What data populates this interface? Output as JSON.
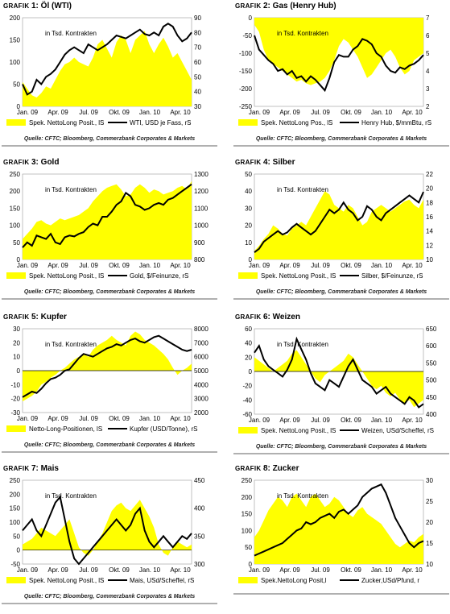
{
  "source_text": "Quelle: CFTC; Bloomberg, Commerzbank Corporates & Markets",
  "fill_color": "#ffff00",
  "line_color": "#000000",
  "chart_data": [
    {
      "type": "area",
      "label_word": "Grafik",
      "label_num": "1:",
      "title": "Öl (WTI)",
      "annotation": "in Tsd. Kontrakten",
      "x_ticks": [
        "Jan. 09",
        "Apr. 09",
        "Jul. 09",
        "Okt. 09",
        "Jan. 10",
        "Apr. 10"
      ],
      "left_ticks": [
        "200",
        "150",
        "100",
        "50",
        "0"
      ],
      "left_range": [
        0,
        200
      ],
      "right_ticks": [
        "90",
        "80",
        "70",
        "60",
        "50",
        "40",
        "30"
      ],
      "right_range": [
        30,
        90
      ],
      "legend_area": "Spek. NettoLong Posit., lS",
      "legend_line": "WTI, USD je Fass, rS",
      "area_values": [
        55,
        40,
        25,
        20,
        30,
        45,
        40,
        60,
        80,
        95,
        100,
        110,
        100,
        95,
        90,
        110,
        140,
        150,
        130,
        110,
        145,
        160,
        150,
        120,
        150,
        160,
        170,
        140,
        120,
        140,
        155,
        135,
        110,
        120,
        100,
        80,
        60
      ],
      "line_values": [
        45,
        38,
        40,
        48,
        45,
        50,
        52,
        55,
        60,
        65,
        68,
        70,
        68,
        66,
        72,
        70,
        68,
        70,
        72,
        75,
        78,
        77,
        76,
        78,
        80,
        82,
        79,
        78,
        80,
        78,
        84,
        86,
        84,
        78,
        74,
        76,
        80
      ]
    },
    {
      "type": "area",
      "label_word": "Grafik",
      "label_num": "2:",
      "title": "Gas (Henry Hub)",
      "annotation": "in Tsd. Kontrakten",
      "x_ticks": [
        "Jan. 09",
        "Apr. 09",
        "Jul. 09",
        "Okt. 09",
        "Jan. 10",
        "Apr. 10"
      ],
      "left_ticks": [
        "0",
        "-50",
        "-100",
        "-150",
        "-200",
        "-250"
      ],
      "left_range": [
        -250,
        0
      ],
      "right_ticks": [
        "7",
        "6",
        "5",
        "4",
        "3",
        "2"
      ],
      "right_range": [
        2,
        7
      ],
      "legend_area": "Spek. NettoLong Pos., lS",
      "legend_line": "Henry Hub, $/mmBtu, rS",
      "area_values": [
        -20,
        -40,
        -90,
        -120,
        -130,
        -140,
        -150,
        -160,
        -170,
        -180,
        -175,
        -185,
        -190,
        -185,
        -180,
        -170,
        -150,
        -120,
        -80,
        -60,
        -70,
        -90,
        -110,
        -140,
        -170,
        -160,
        -140,
        -120,
        -100,
        -90,
        -110,
        -140,
        -160,
        -150,
        -120,
        -110,
        -100
      ],
      "line_values": [
        6,
        5.2,
        4.9,
        4.6,
        4.4,
        4.0,
        4.1,
        3.8,
        4.0,
        3.6,
        3.7,
        3.4,
        3.7,
        3.5,
        3.2,
        2.9,
        3.6,
        4.5,
        4.9,
        4.8,
        4.8,
        5.2,
        5.4,
        5.8,
        5.7,
        5.5,
        5.0,
        4.8,
        4.3,
        4.0,
        3.9,
        4.2,
        4.1,
        4.3,
        4.4,
        4.6,
        4.9
      ]
    },
    {
      "type": "area",
      "label_word": "Grafik",
      "label_num": "3:",
      "title": "Gold",
      "annotation": "in Tsd. Kontrakten",
      "x_ticks": [
        "Jan. 09",
        "Apr. 09",
        "Jul. 09",
        "Okt. 09",
        "Jan. 10",
        "Apr. 10"
      ],
      "left_ticks": [
        "250",
        "200",
        "150",
        "100",
        "50",
        "0"
      ],
      "left_range": [
        0,
        250
      ],
      "right_ticks": [
        "1300",
        "1200",
        "1100",
        "1000",
        "900",
        "800"
      ],
      "right_range": [
        800,
        1300
      ],
      "legend_area": "Spek. NettoLong Posit., lS",
      "legend_line": "Gold, $/Feinunze, rS",
      "area_values": [
        60,
        75,
        90,
        110,
        115,
        105,
        100,
        110,
        120,
        115,
        120,
        125,
        130,
        140,
        150,
        170,
        185,
        200,
        210,
        215,
        220,
        205,
        185,
        190,
        210,
        220,
        210,
        195,
        205,
        200,
        190,
        195,
        200,
        210,
        215,
        205,
        230
      ],
      "line_values": [
        870,
        900,
        880,
        940,
        930,
        920,
        950,
        900,
        890,
        930,
        940,
        935,
        950,
        960,
        990,
        1010,
        1000,
        1050,
        1050,
        1080,
        1120,
        1140,
        1190,
        1170,
        1120,
        1110,
        1090,
        1100,
        1120,
        1130,
        1120,
        1150,
        1160,
        1180,
        1200,
        1220,
        1240
      ]
    },
    {
      "type": "area",
      "label_word": "Grafik",
      "label_num": "4:",
      "title": "Silber",
      "annotation": "in Tsd. Kontrakten",
      "x_ticks": [
        "Jan. 09",
        "Apr. 09",
        "Jul. 09",
        "Okt. 09",
        "Jan. 10",
        "Apr. 10"
      ],
      "left_ticks": [
        "50",
        "40",
        "30",
        "20",
        "10",
        "0"
      ],
      "left_range": [
        0,
        50
      ],
      "right_ticks": [
        "22",
        "20",
        "18",
        "16",
        "14",
        "12",
        "10"
      ],
      "right_range": [
        10,
        22
      ],
      "legend_area": "Spek. NettoLong Posit., lS",
      "legend_line": "Silber, $/Feinunze, rS",
      "area_values": [
        5,
        8,
        12,
        15,
        20,
        18,
        15,
        14,
        18,
        20,
        22,
        20,
        25,
        30,
        35,
        40,
        38,
        32,
        30,
        28,
        32,
        30,
        25,
        20,
        22,
        28,
        30,
        32,
        30,
        28,
        30,
        32,
        34,
        35,
        32,
        30,
        35
      ],
      "line_values": [
        11,
        11.5,
        12.5,
        13,
        13.5,
        14,
        13.5,
        13.8,
        14.5,
        15,
        14.5,
        14,
        13.5,
        14,
        15,
        16,
        17,
        16.5,
        17,
        18,
        17,
        16.5,
        15.5,
        16,
        17.5,
        17,
        16,
        15.5,
        16.5,
        17,
        17.5,
        18,
        18.5,
        19,
        18.5,
        18,
        19.5
      ]
    },
    {
      "type": "area",
      "label_word": "Grafik",
      "label_num": "5:",
      "title": "Kupfer",
      "annotation": "in Tsd. Kontrakten",
      "x_ticks": [
        "Jan. 09",
        "Apr. 09",
        "Jul. 09",
        "Okt. 09",
        "Jan. 10",
        "Apr. 10"
      ],
      "left_ticks": [
        "30",
        "20",
        "10",
        "0",
        "-10",
        "-20",
        "-30"
      ],
      "left_range": [
        -30,
        30
      ],
      "right_ticks": [
        "8000",
        "7000",
        "6000",
        "5000",
        "4000",
        "3000",
        "2000"
      ],
      "right_range": [
        2000,
        8000
      ],
      "legend_area": "Netto-Long-Positionen, lS",
      "legend_line": "Kupfer (USD/Tonne), rS",
      "area_values": [
        -22,
        -20,
        -18,
        -15,
        -10,
        -8,
        -5,
        -3,
        0,
        2,
        5,
        8,
        10,
        12,
        10,
        15,
        18,
        20,
        22,
        25,
        22,
        20,
        18,
        25,
        28,
        26,
        22,
        20,
        18,
        15,
        12,
        8,
        2,
        -3,
        0,
        2,
        5
      ],
      "line_values": [
        3100,
        3300,
        3500,
        3400,
        3700,
        4100,
        4400,
        4500,
        4700,
        5000,
        5100,
        5500,
        5900,
        6200,
        6100,
        6000,
        6200,
        6400,
        6600,
        6700,
        6900,
        6800,
        7000,
        7200,
        7300,
        7100,
        7000,
        7200,
        7400,
        7500,
        7300,
        7100,
        6900,
        6700,
        6500,
        6400,
        6500
      ]
    },
    {
      "type": "area",
      "label_word": "Grafik",
      "label_num": "6:",
      "title": "Weizen",
      "annotation": "in Tsd. Kontrakten",
      "x_ticks": [
        "Jan. 09",
        "Apr. 09",
        "Jul. 09",
        "Okt. 09",
        "Jan. 10",
        "Apr. 10"
      ],
      "left_ticks": [
        "60",
        "40",
        "20",
        "0",
        "-20",
        "-40",
        "-60"
      ],
      "left_range": [
        -60,
        60
      ],
      "right_ticks": [
        "650",
        "600",
        "550",
        "500",
        "450",
        "400"
      ],
      "right_range": [
        400,
        650
      ],
      "legend_area": "Spek. NettoLong Posit., lS",
      "legend_line": "Weizen, USd/Scheffel, rS",
      "area_values": [
        20,
        15,
        10,
        5,
        0,
        5,
        10,
        15,
        25,
        30,
        20,
        10,
        0,
        -10,
        -15,
        -5,
        0,
        5,
        10,
        15,
        25,
        20,
        10,
        0,
        -10,
        -20,
        -25,
        -20,
        -30,
        -35,
        -30,
        -40,
        -45,
        -40,
        -50,
        -45,
        -40
      ],
      "line_values": [
        580,
        600,
        560,
        540,
        530,
        520,
        510,
        530,
        560,
        620,
        590,
        560,
        520,
        490,
        480,
        470,
        500,
        490,
        480,
        510,
        540,
        560,
        530,
        500,
        490,
        480,
        460,
        470,
        480,
        460,
        450,
        440,
        430,
        450,
        440,
        420,
        430
      ]
    },
    {
      "type": "area",
      "label_word": "Grafik",
      "label_num": "7:",
      "title": "Mais",
      "annotation": "in Tsd. Kontrakten",
      "x_ticks": [
        "Jan. 09",
        "Apr. 09",
        "Jul. 09",
        "Okt. 09",
        "Jan. 10",
        "Apr. 10"
      ],
      "left_ticks": [
        "250",
        "200",
        "150",
        "100",
        "50",
        "0",
        "-50"
      ],
      "left_range": [
        -50,
        250
      ],
      "right_ticks": [
        "450",
        "400",
        "350",
        "300"
      ],
      "right_range": [
        300,
        450
      ],
      "legend_area": "Spek. NettoLong Posit., lS",
      "legend_line": "Mais, USd/Scheffel, rS",
      "area_values": [
        20,
        30,
        40,
        60,
        80,
        70,
        60,
        50,
        70,
        90,
        110,
        60,
        10,
        -10,
        -20,
        0,
        30,
        60,
        100,
        140,
        160,
        170,
        150,
        140,
        160,
        180,
        150,
        120,
        80,
        20,
        -10,
        -20,
        10,
        30,
        20,
        10,
        20
      ],
      "line_values": [
        360,
        370,
        380,
        360,
        350,
        370,
        390,
        410,
        420,
        380,
        340,
        310,
        300,
        310,
        320,
        330,
        340,
        350,
        360,
        370,
        380,
        370,
        360,
        370,
        390,
        400,
        360,
        340,
        330,
        340,
        350,
        340,
        330,
        340,
        350,
        345,
        355
      ]
    },
    {
      "type": "area",
      "label_word": "Grafik",
      "label_num": "8:",
      "title": "Zucker",
      "annotation": "in Tsd. Kontrakten",
      "x_ticks": [
        "Jan. 09",
        "Apr. 09",
        "Jul. 09",
        "Okt. 09",
        "Jan. 10",
        "Apr. 10"
      ],
      "left_ticks": [
        "250",
        "200",
        "150",
        "100",
        "50",
        "0"
      ],
      "left_range": [
        0,
        250
      ],
      "right_ticks": [
        "30",
        "25",
        "20",
        "15",
        "10"
      ],
      "right_range": [
        10,
        30
      ],
      "legend_area": "Spek.NettoLong Posit,l",
      "legend_line": "Zucker,USd/Pfund, r",
      "area_values": [
        80,
        100,
        130,
        160,
        180,
        200,
        190,
        170,
        200,
        210,
        190,
        170,
        200,
        210,
        190,
        170,
        180,
        200,
        190,
        170,
        150,
        140,
        160,
        170,
        150,
        140,
        130,
        120,
        100,
        80,
        60,
        50,
        60,
        70,
        65,
        80,
        90
      ],
      "line_values": [
        12,
        12.5,
        13,
        13.5,
        14,
        14.5,
        15,
        16,
        17,
        18,
        18.5,
        20,
        19.5,
        20,
        21,
        21.5,
        22,
        21,
        22.5,
        23,
        22,
        23,
        24,
        26,
        27,
        28,
        28.5,
        29,
        27,
        24,
        21,
        19,
        17,
        15,
        14,
        15,
        15.5
      ]
    }
  ]
}
